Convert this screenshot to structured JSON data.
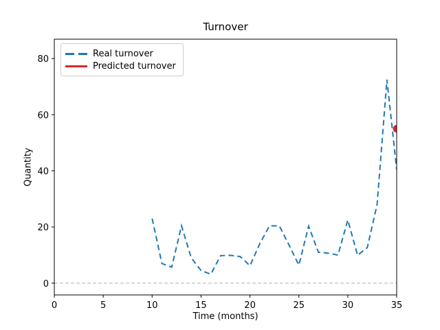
{
  "chart_data": {
    "type": "line",
    "title": "Turnover",
    "xlabel": "Time (months)",
    "ylabel": "Quantity",
    "xlim": [
      0,
      35
    ],
    "ylim": [
      -4.2,
      86.9
    ],
    "xticks": [
      0,
      5,
      10,
      15,
      20,
      25,
      30,
      35
    ],
    "yticks": [
      0,
      20,
      40,
      60,
      80
    ],
    "grid": false,
    "axis_color": "#000000",
    "zero_line": {
      "value": 0,
      "color": "#b0b0b0",
      "style": "dashed"
    },
    "legend": {
      "position": "upper-left",
      "border_color": "#cccccc",
      "background": "#ffffff"
    },
    "series": [
      {
        "name": "Real turnover",
        "type": "line",
        "style": "dashed",
        "color": "#1f77b4",
        "linewidth": 2,
        "x": [
          10,
          11,
          12,
          13,
          14,
          15,
          16,
          17,
          18,
          19,
          20,
          21,
          22,
          23,
          24,
          25,
          26,
          27,
          28,
          29,
          30,
          31,
          32,
          33,
          34,
          35
        ],
        "values": [
          23,
          7,
          5.7,
          20.4,
          9,
          4.5,
          3.2,
          9.8,
          9.9,
          9.5,
          6.2,
          14,
          20.4,
          20.4,
          13.5,
          6.4,
          20.3,
          11,
          10.7,
          10,
          22.5,
          9.9,
          12.7,
          28,
          72.5,
          40.5
        ]
      },
      {
        "name": "Predicted turnover",
        "type": "scatter",
        "style": "solid",
        "color": "#d62728",
        "marker": "circle",
        "marker_radius": 5.5,
        "x": [
          35
        ],
        "values": [
          55
        ]
      }
    ]
  }
}
